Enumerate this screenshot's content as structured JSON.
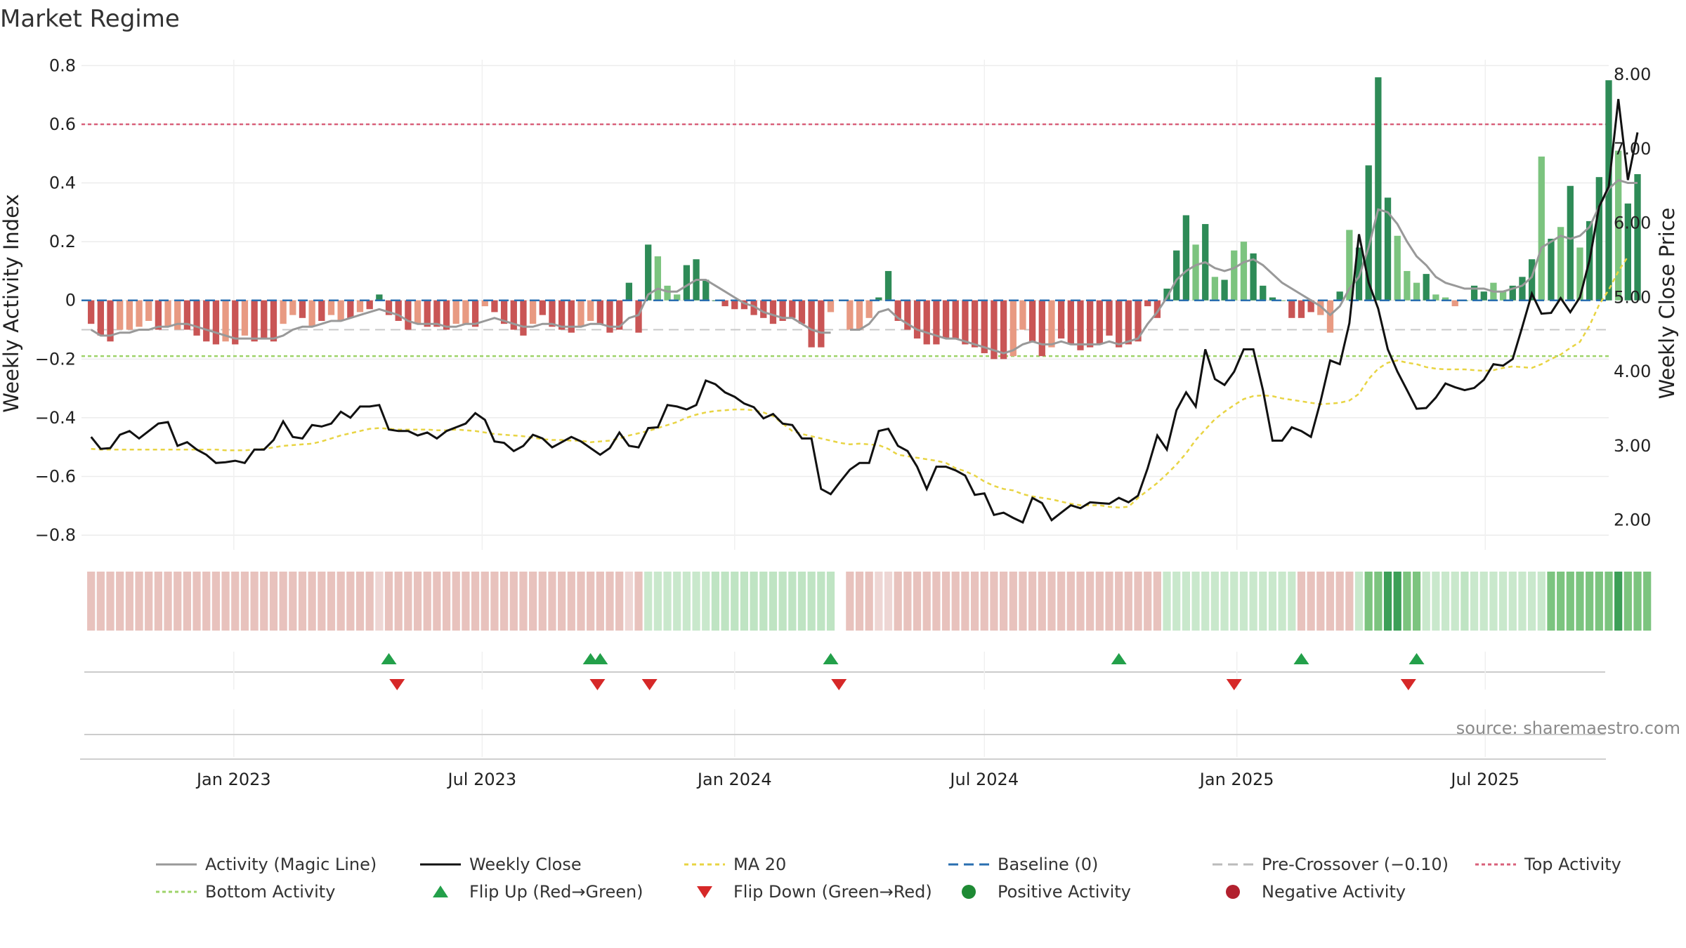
{
  "chart_data": {
    "type": "bar+line",
    "title": "Market Regime",
    "source": "source: sharemaestro.com",
    "x_start": "2022-09-19",
    "x_range": [
      "2022-09-12",
      "2025-09-29"
    ],
    "x_ticks": [
      {
        "date": "2023-01-01",
        "label": "Jan 2023"
      },
      {
        "date": "2023-07-01",
        "label": "Jul 2023"
      },
      {
        "date": "2024-01-01",
        "label": "Jan 2024"
      },
      {
        "date": "2024-07-01",
        "label": "Jul 2024"
      },
      {
        "date": "2025-01-01",
        "label": "Jan 2025"
      },
      {
        "date": "2025-07-01",
        "label": "Jul 2025"
      }
    ],
    "y_left": {
      "label": "Weekly Activity Index",
      "range": [
        -0.85,
        0.82
      ],
      "ticks": [
        {
          "v": 0.8,
          "label": "0.8"
        },
        {
          "v": 0.6,
          "label": "0.6"
        },
        {
          "v": 0.4,
          "label": "0.4"
        },
        {
          "v": 0.2,
          "label": "0.2"
        },
        {
          "v": 0,
          "label": "0"
        },
        {
          "v": -0.2,
          "label": "−0.2"
        },
        {
          "v": -0.4,
          "label": "−0.4"
        },
        {
          "v": -0.6,
          "label": "−0.6"
        },
        {
          "v": -0.8,
          "label": "−0.8"
        }
      ]
    },
    "y_right": {
      "label": "Weekly Close Price",
      "range": [
        1.6,
        8.2
      ],
      "ticks": [
        {
          "v": 8,
          "label": "8.00"
        },
        {
          "v": 7,
          "label": "7.00"
        },
        {
          "v": 6,
          "label": "6.00"
        },
        {
          "v": 5,
          "label": "5.00"
        },
        {
          "v": 4,
          "label": "4.00"
        },
        {
          "v": 3,
          "label": "3.00"
        },
        {
          "v": 2,
          "label": "2.00"
        }
      ]
    },
    "levels": {
      "top": 0.6,
      "bottom": -0.19,
      "pre_crossover": -0.1,
      "baseline": 0
    },
    "activity": [
      -0.08,
      -0.12,
      -0.14,
      -0.1,
      -0.1,
      -0.09,
      -0.07,
      -0.1,
      -0.09,
      -0.1,
      -0.1,
      -0.12,
      -0.14,
      -0.15,
      -0.14,
      -0.15,
      -0.12,
      -0.14,
      -0.13,
      -0.14,
      -0.08,
      -0.05,
      -0.06,
      -0.09,
      -0.07,
      -0.05,
      -0.07,
      -0.06,
      -0.04,
      -0.03,
      0.02,
      -0.05,
      -0.07,
      -0.1,
      -0.08,
      -0.09,
      -0.09,
      -0.1,
      -0.08,
      -0.08,
      -0.09,
      -0.02,
      -0.04,
      -0.08,
      -0.1,
      -0.12,
      -0.08,
      -0.05,
      -0.09,
      -0.1,
      -0.11,
      -0.09,
      -0.07,
      -0.08,
      -0.11,
      -0.1,
      0.06,
      -0.11,
      0.19,
      0.15,
      0.05,
      0.02,
      0.12,
      0.14,
      0.07,
      0,
      -0.02,
      -0.03,
      -0.03,
      -0.05,
      -0.06,
      -0.08,
      -0.07,
      -0.06,
      -0.08,
      -0.16,
      -0.16,
      -0.04,
      null,
      -0.1,
      -0.1,
      -0.06,
      0.01,
      0.1,
      -0.07,
      -0.1,
      -0.13,
      -0.15,
      -0.15,
      -0.13,
      -0.13,
      -0.15,
      -0.16,
      -0.18,
      -0.2,
      -0.2,
      -0.19,
      -0.1,
      -0.14,
      -0.19,
      -0.16,
      -0.13,
      -0.15,
      -0.17,
      -0.16,
      -0.15,
      -0.12,
      -0.16,
      -0.15,
      -0.14,
      -0.02,
      -0.06,
      0.04,
      0.17,
      0.29,
      0.19,
      0.26,
      0.08,
      0.07,
      0.17,
      0.2,
      0.16,
      0.05,
      0.01,
      0,
      -0.06,
      -0.06,
      -0.04,
      -0.05,
      -0.11,
      0.03,
      0.24,
      0.18,
      0.46,
      0.76,
      0.35,
      0.22,
      0.1,
      0.06,
      0.09,
      0.02,
      0.01,
      -0.02,
      0,
      0.05,
      0.03,
      0.06,
      0.03,
      0.05,
      0.08,
      0.14,
      0.49,
      0.21,
      0.25,
      0.39,
      0.18,
      0.27,
      0.42,
      0.75,
      0.51,
      0.33,
      0.43
    ],
    "activity_colors": {
      "pos_strong": "#2e8b57",
      "pos_light": "#7cc47f",
      "neg_strong": "#c95555",
      "neg_light": "#e89a82"
    },
    "activity_strength": [
      1,
      1,
      1,
      0,
      0,
      0,
      0,
      1,
      0,
      0,
      1,
      1,
      1,
      1,
      0,
      1,
      0,
      1,
      1,
      1,
      0,
      0,
      1,
      0,
      1,
      0,
      0,
      1,
      0,
      1,
      1,
      1,
      1,
      1,
      0,
      1,
      1,
      1,
      0,
      0,
      1,
      0,
      1,
      1,
      1,
      1,
      0,
      1,
      1,
      1,
      1,
      0,
      0,
      1,
      1,
      1,
      1,
      1,
      1,
      0,
      0,
      0,
      1,
      1,
      1,
      1,
      1,
      1,
      1,
      1,
      1,
      1,
      1,
      1,
      1,
      1,
      1,
      0,
      0,
      0,
      0,
      0,
      1,
      1,
      1,
      1,
      1,
      1,
      1,
      1,
      1,
      1,
      1,
      1,
      1,
      1,
      0,
      0,
      1,
      1,
      0,
      1,
      1,
      1,
      1,
      1,
      1,
      1,
      1,
      1,
      1,
      1,
      1,
      1,
      1,
      0,
      1,
      0,
      1,
      0,
      0,
      1,
      1,
      1,
      0,
      1,
      1,
      1,
      0,
      0,
      1,
      0,
      1,
      1,
      1,
      1,
      0,
      0,
      0,
      1,
      0,
      0,
      0,
      1,
      1,
      1,
      0,
      0,
      1,
      1,
      1,
      0,
      1,
      0,
      1,
      0,
      1,
      1,
      1,
      0,
      1,
      1
    ],
    "magic_line": [
      -0.1,
      -0.12,
      -0.12,
      -0.11,
      -0.11,
      -0.1,
      -0.1,
      -0.09,
      -0.09,
      -0.08,
      -0.08,
      -0.09,
      -0.1,
      -0.11,
      -0.12,
      -0.13,
      -0.13,
      -0.13,
      -0.13,
      -0.13,
      -0.12,
      -0.1,
      -0.09,
      -0.09,
      -0.08,
      -0.07,
      -0.07,
      -0.06,
      -0.05,
      -0.04,
      -0.03,
      -0.04,
      -0.05,
      -0.07,
      -0.08,
      -0.08,
      -0.08,
      -0.09,
      -0.09,
      -0.08,
      -0.08,
      -0.07,
      -0.06,
      -0.07,
      -0.08,
      -0.09,
      -0.09,
      -0.08,
      -0.08,
      -0.09,
      -0.09,
      -0.09,
      -0.08,
      -0.08,
      -0.09,
      -0.09,
      -0.06,
      -0.05,
      0.02,
      0.04,
      0.03,
      0.03,
      0.05,
      0.07,
      0.07,
      0.05,
      0.03,
      0.01,
      -0.01,
      -0.02,
      -0.04,
      -0.05,
      -0.06,
      -0.06,
      -0.08,
      -0.1,
      -0.11,
      -0.11,
      null,
      -0.1,
      -0.1,
      -0.08,
      -0.04,
      -0.03,
      -0.06,
      -0.08,
      -0.1,
      -0.11,
      -0.12,
      -0.13,
      -0.13,
      -0.14,
      -0.15,
      -0.16,
      -0.17,
      -0.18,
      -0.17,
      -0.15,
      -0.14,
      -0.15,
      -0.15,
      -0.14,
      -0.15,
      -0.15,
      -0.15,
      -0.15,
      -0.14,
      -0.15,
      -0.14,
      -0.13,
      -0.08,
      -0.04,
      0.01,
      0.07,
      0.1,
      0.12,
      0.13,
      0.11,
      0.1,
      0.11,
      0.13,
      0.14,
      0.12,
      0.09,
      0.06,
      0.04,
      0.02,
      0,
      -0.02,
      -0.05,
      -0.02,
      0.04,
      0.08,
      0.18,
      0.31,
      0.3,
      0.26,
      0.2,
      0.15,
      0.12,
      0.08,
      0.06,
      0.05,
      0.04,
      0.04,
      0.04,
      0.03,
      0.03,
      0.04,
      0.05,
      0.08,
      0.18,
      0.2,
      0.22,
      0.21,
      0.22,
      0.25,
      0.32,
      0.38,
      0.41,
      0.4,
      0.4
    ],
    "weekly_close": [
      3.12,
      2.96,
      2.97,
      3.15,
      3.2,
      3.1,
      3.2,
      3.3,
      3.32,
      3.0,
      3.05,
      2.95,
      2.88,
      2.77,
      2.78,
      2.8,
      2.77,
      2.95,
      2.95,
      3.08,
      3.33,
      3.12,
      3.1,
      3.28,
      3.26,
      3.3,
      3.46,
      3.38,
      3.53,
      3.53,
      3.55,
      3.22,
      3.2,
      3.2,
      3.14,
      3.18,
      3.1,
      3.2,
      3.25,
      3.3,
      3.44,
      3.35,
      3.06,
      3.04,
      2.93,
      3.0,
      3.15,
      3.1,
      2.98,
      3.05,
      3.12,
      3.06,
      2.97,
      2.88,
      2.97,
      3.18,
      3.0,
      2.98,
      3.24,
      3.25,
      3.55,
      3.53,
      3.49,
      3.55,
      3.88,
      3.83,
      3.72,
      3.66,
      3.57,
      3.52,
      3.37,
      3.43,
      3.3,
      3.28,
      3.1,
      3.1,
      2.42,
      2.35,
      2.52,
      2.68,
      2.77,
      2.77,
      3.2,
      3.23,
      3.0,
      2.93,
      2.72,
      2.42,
      2.72,
      2.72,
      2.67,
      2.6,
      2.34,
      2.36,
      2.07,
      2.1,
      2.03,
      1.97,
      2.3,
      2.23,
      2.0,
      2.1,
      2.2,
      2.16,
      2.24,
      2.23,
      2.22,
      2.3,
      2.24,
      2.33,
      2.7,
      3.14,
      2.95,
      3.48,
      3.72,
      3.53,
      4.3,
      3.9,
      3.82,
      4.0,
      4.3,
      4.3,
      3.75,
      3.07,
      3.07,
      3.25,
      3.2,
      3.12,
      3.6,
      4.15,
      4.1,
      4.65,
      5.85,
      5.2,
      4.85,
      4.3,
      4.0,
      3.75,
      3.5,
      3.51,
      3.65,
      3.84,
      3.79,
      3.75,
      3.78,
      3.89,
      4.1,
      4.08,
      4.17,
      4.6,
      5.05,
      4.78,
      4.79,
      4.99,
      4.8,
      5.0,
      5.5,
      6.22,
      6.49,
      7.67,
      6.58,
      7.22
    ],
    "ma20": [
      2.96,
      2.95,
      2.95,
      2.95,
      2.95,
      2.95,
      2.95,
      2.95,
      2.95,
      2.95,
      2.95,
      2.95,
      2.95,
      2.95,
      2.94,
      2.94,
      2.94,
      2.95,
      2.96,
      2.98,
      3.0,
      3.01,
      3.02,
      3.03,
      3.06,
      3.1,
      3.14,
      3.17,
      3.2,
      3.23,
      3.24,
      3.23,
      3.22,
      3.22,
      3.22,
      3.22,
      3.21,
      3.21,
      3.22,
      3.21,
      3.2,
      3.18,
      3.16,
      3.15,
      3.14,
      3.13,
      3.11,
      3.09,
      3.08,
      3.08,
      3.07,
      3.07,
      3.05,
      3.06,
      3.07,
      3.1,
      3.14,
      3.17,
      3.2,
      3.24,
      3.28,
      3.32,
      3.38,
      3.42,
      3.45,
      3.47,
      3.48,
      3.49,
      3.49,
      3.48,
      3.45,
      3.4,
      3.3,
      3.2,
      3.16,
      3.13,
      3.1,
      3.07,
      3.04,
      3.02,
      3.03,
      3.02,
      3.01,
      2.96,
      2.88,
      2.86,
      2.84,
      2.82,
      2.8,
      2.77,
      2.7,
      2.66,
      2.6,
      2.52,
      2.46,
      2.42,
      2.4,
      2.35,
      2.32,
      2.3,
      2.28,
      2.25,
      2.22,
      2.2,
      2.2,
      2.2,
      2.18,
      2.17,
      2.18,
      2.3,
      2.4,
      2.5,
      2.62,
      2.75,
      2.9,
      3.08,
      3.22,
      3.36,
      3.46,
      3.55,
      3.63,
      3.67,
      3.68,
      3.67,
      3.64,
      3.62,
      3.6,
      3.58,
      3.56,
      3.57,
      3.58,
      3.61,
      3.7,
      3.9,
      4.04,
      4.12,
      4.15,
      4.12,
      4.1,
      4.06,
      4.04,
      4.03,
      4.03,
      4.03,
      4.02,
      4.01,
      4.02,
      4.05,
      4.07,
      4.06,
      4.05,
      4.1,
      4.17,
      4.23,
      4.32,
      4.4,
      4.62,
      4.9,
      5.1,
      5.35,
      5.55
    ],
    "regime_cells": [
      1,
      1,
      1,
      1,
      1,
      1,
      1,
      1,
      1,
      1,
      1,
      1,
      1,
      1,
      1,
      1,
      1,
      1,
      1,
      1,
      1,
      1,
      1,
      1,
      1,
      1,
      1,
      1,
      1,
      1,
      -1,
      1,
      1,
      1,
      1,
      1,
      1,
      1,
      1,
      1,
      1,
      1,
      1,
      1,
      1,
      1,
      1,
      1,
      1,
      1,
      1,
      1,
      1,
      1,
      1,
      1,
      -1,
      1,
      -2,
      -2,
      -2,
      -2,
      -2,
      -2,
      -2,
      2,
      2,
      2,
      2,
      2,
      2,
      2,
      2,
      2,
      2,
      2,
      2,
      2,
      null,
      1,
      1,
      1,
      -1,
      -1,
      1,
      1,
      1,
      1,
      1,
      1,
      1,
      1,
      1,
      1,
      1,
      1,
      1,
      1,
      1,
      1,
      1,
      1,
      1,
      1,
      1,
      1,
      1,
      1,
      1,
      1,
      1,
      1,
      -2,
      -2,
      -2,
      -2,
      -2,
      -2,
      -2,
      -2,
      -2,
      -2,
      -2,
      -2,
      -2,
      -2,
      1,
      1,
      1,
      1,
      1,
      1,
      -2,
      -3,
      -3,
      -4,
      -4,
      -3,
      -3,
      -2,
      -2,
      -2,
      -2,
      2,
      -2,
      -2,
      -2,
      -2,
      -2,
      -2,
      -2,
      -2,
      -3,
      -3,
      -3,
      -3,
      -3,
      -3,
      -3,
      -4,
      -3,
      -3,
      -3
    ],
    "flips_up": [
      "2023-04-24",
      "2023-09-18",
      "2023-09-25",
      "2024-03-11",
      "2024-10-07",
      "2025-02-17",
      "2025-05-12"
    ],
    "flips_down": [
      "2023-04-30",
      "2023-09-23",
      "2023-10-31",
      "2024-03-17",
      "2024-12-30",
      "2025-05-06"
    ],
    "legend": [
      {
        "label": "Activity (Magic Line)",
        "kind": "line",
        "color": "#999999",
        "dash": ""
      },
      {
        "label": "Weekly Close",
        "kind": "line",
        "color": "#111111",
        "dash": ""
      },
      {
        "label": "MA 20",
        "kind": "line",
        "color": "#e8d443",
        "dash": "6,5"
      },
      {
        "label": "Baseline (0)",
        "kind": "line",
        "color": "#2a6fb0",
        "dash": "14,8"
      },
      {
        "label": "Pre-Crossover (−0.10)",
        "kind": "line",
        "color": "#bbbbbb",
        "dash": "14,8"
      },
      {
        "label": "Top Activity",
        "kind": "line",
        "color": "#d9607a",
        "dash": "5,4"
      },
      {
        "label": "Bottom Activity",
        "kind": "line",
        "color": "#9ed36a",
        "dash": "5,4"
      },
      {
        "label": "Flip Up (Red→Green)",
        "kind": "tri-up",
        "color": "#23a04a"
      },
      {
        "label": "Flip Down (Green→Red)",
        "kind": "tri-down",
        "color": "#d62828"
      },
      {
        "label": "Positive Activity",
        "kind": "dot",
        "color": "#1e8a34"
      },
      {
        "label": "Negative Activity",
        "kind": "dot",
        "color": "#b2202e"
      }
    ]
  }
}
